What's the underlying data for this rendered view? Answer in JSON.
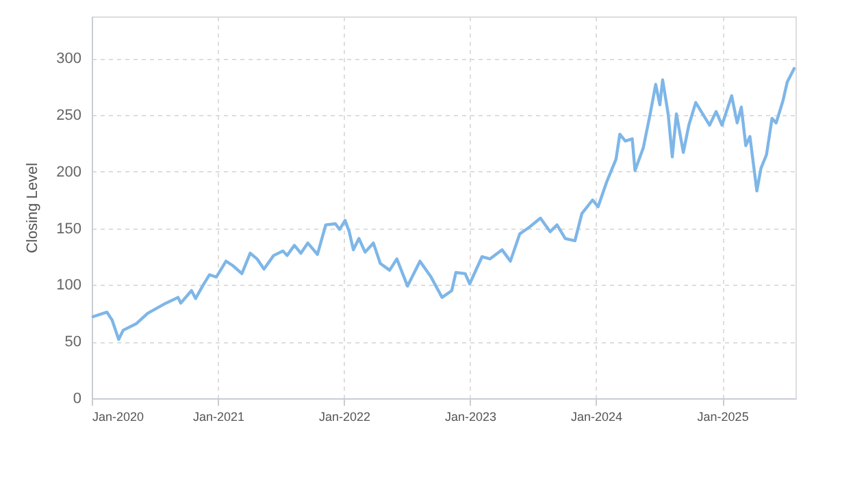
{
  "chart_data": {
    "type": "line",
    "ylabel": "Closing Level",
    "xlim": [
      "2020-01-01",
      "2025-08-01"
    ],
    "ylim": [
      0,
      337
    ],
    "yticks": [
      0,
      50,
      100,
      150,
      200,
      250,
      300
    ],
    "xticks": [
      {
        "value": "2020-01-01",
        "label": "Jan-2020"
      },
      {
        "value": "2021-01-01",
        "label": "Jan-2021"
      },
      {
        "value": "2022-01-01",
        "label": "Jan-2022"
      },
      {
        "value": "2023-01-01",
        "label": "Jan-2023"
      },
      {
        "value": "2024-01-01",
        "label": "Jan-2024"
      },
      {
        "value": "2025-01-01",
        "label": "Jan-2025"
      }
    ],
    "grid": true,
    "marker": "none",
    "line_style": "solid",
    "x": [
      "2020-01-05",
      "2020-02-14",
      "2020-02-29",
      "2020-03-19",
      "2020-04-01",
      "2020-05-10",
      "2020-06-11",
      "2020-07-28",
      "2020-09-07",
      "2020-09-15",
      "2020-10-16",
      "2020-10-28",
      "2020-11-17",
      "2020-12-07",
      "2020-12-27",
      "2021-01-24",
      "2021-02-13",
      "2021-03-11",
      "2021-04-04",
      "2021-04-24",
      "2021-05-14",
      "2021-06-11",
      "2021-07-08",
      "2021-07-20",
      "2021-08-10",
      "2021-08-29",
      "2021-09-18",
      "2021-10-16",
      "2021-11-09",
      "2021-12-07",
      "2021-12-19",
      "2022-01-04",
      "2022-01-16",
      "2022-01-28",
      "2022-02-13",
      "2022-03-03",
      "2022-03-27",
      "2022-04-16",
      "2022-05-13",
      "2022-06-03",
      "2022-07-04",
      "2022-08-09",
      "2022-09-10",
      "2022-10-12",
      "2022-11-09",
      "2022-11-21",
      "2022-12-18",
      "2022-12-31",
      "2023-02-05",
      "2023-02-28",
      "2023-04-04",
      "2023-04-28",
      "2023-05-25",
      "2023-06-22",
      "2023-07-24",
      "2023-08-21",
      "2023-09-10",
      "2023-10-04",
      "2023-11-01",
      "2023-11-21",
      "2023-12-22",
      "2024-01-07",
      "2024-02-01",
      "2024-02-28",
      "2024-03-10",
      "2024-03-26",
      "2024-04-15",
      "2024-04-23",
      "2024-05-17",
      "2024-06-06",
      "2024-06-22",
      "2024-07-04",
      "2024-07-12",
      "2024-07-28",
      "2024-08-09",
      "2024-08-21",
      "2024-09-10",
      "2024-09-26",
      "2024-10-16",
      "2024-11-05",
      "2024-11-25",
      "2024-12-14",
      "2024-12-31",
      "2025-01-28",
      "2025-02-13",
      "2025-02-25",
      "2025-03-10",
      "2025-03-22",
      "2025-04-11",
      "2025-04-23",
      "2025-05-09",
      "2025-05-25",
      "2025-06-06",
      "2025-06-26",
      "2025-07-08",
      "2025-07-28"
    ],
    "series": [
      {
        "color": "#7eb6e8",
        "values": [
          72,
          76,
          69,
          52,
          60,
          66,
          75,
          83,
          89,
          84,
          95,
          88,
          99,
          109,
          107,
          121,
          117,
          110,
          128,
          123,
          114,
          126,
          130,
          126,
          135,
          128,
          137,
          127,
          153,
          154,
          149,
          157,
          147,
          131,
          141,
          129,
          137,
          119,
          113,
          123,
          99,
          121,
          107,
          89,
          95,
          111,
          110,
          101,
          125,
          123,
          131,
          121,
          145,
          151,
          159,
          147,
          153,
          141,
          139,
          163,
          175,
          169,
          191,
          211,
          233,
          227,
          229,
          201,
          221,
          251,
          277,
          259,
          281,
          251,
          213,
          251,
          217,
          241,
          261,
          251,
          241,
          253,
          241,
          267,
          243,
          257,
          223,
          231,
          183,
          203,
          215,
          247,
          243,
          263,
          279,
          291
        ]
      }
    ]
  }
}
